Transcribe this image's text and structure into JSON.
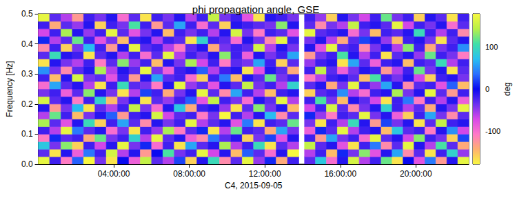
{
  "chart_data": {
    "type": "heatmap",
    "title": "phi propagation angle, GSE",
    "x_label": "C4, 2015-09-05",
    "y_label": "Frequency [Hz]",
    "xlim": [
      0,
      22.8
    ],
    "xticks": [
      {
        "value": 4,
        "label": "04:00:00"
      },
      {
        "value": 8,
        "label": "08:00:00"
      },
      {
        "value": 12,
        "label": "12:00:00"
      },
      {
        "value": 16,
        "label": "16:00:00"
      },
      {
        "value": 20,
        "label": "20:00:00"
      }
    ],
    "ylim": [
      0,
      0.5
    ],
    "yticks": [
      {
        "value": 0,
        "label": "0.0"
      },
      0.1,
      0.2,
      0.3,
      0.4,
      0.5
    ],
    "x_edges": [
      0,
      0.6,
      1.2,
      1.8,
      2.4,
      3,
      3.6,
      4.2,
      4.8,
      5.4,
      6,
      6.6,
      7.2,
      7.8,
      8.4,
      9,
      9.6,
      10.2,
      10.8,
      11.4,
      12,
      12.6,
      13.2,
      13.8,
      14.1,
      14.68,
      15.26,
      15.84,
      16.42,
      17,
      17.58,
      18.16,
      18.74,
      19.32,
      19.9,
      20.48,
      21.06,
      21.64,
      22.22,
      22.8
    ],
    "y_edges": [
      0,
      0.025,
      0.05,
      0.075,
      0.1,
      0.125,
      0.15,
      0.175,
      0.2,
      0.225,
      0.25,
      0.275,
      0.3,
      0.325,
      0.35,
      0.375,
      0.4,
      0.425,
      0.45,
      0.475,
      0.5
    ],
    "cells": [
      [
        170,
        -20,
        -110,
        30,
        180,
        -40,
        -170,
        0,
        -90,
        150,
        -30,
        -60,
        20,
        -160,
        -10,
        100,
        -120,
        -30,
        170,
        -50,
        10,
        -140,
        -20,
        null,
        -30,
        80,
        -100,
        -10,
        160,
        -60,
        -20,
        120,
        -170,
        0,
        -80,
        40,
        -130,
        -10,
        170
      ],
      [
        -30,
        -170,
        -10,
        -90,
        40,
        -20,
        160,
        -60,
        -10,
        -130,
        0,
        110,
        -40,
        -20,
        170,
        -70,
        -10,
        -150,
        30,
        -30,
        -100,
        -10,
        180,
        null,
        -60,
        -20,
        -150,
        10,
        -40,
        130,
        -80,
        -10,
        60,
        -120,
        -30,
        -170,
        -20,
        90,
        -50
      ],
      [
        80,
        -40,
        130,
        -160,
        -20,
        -70,
        -10,
        170,
        -40,
        10,
        -100,
        -20,
        -170,
        60,
        -30,
        -10,
        140,
        -60,
        -20,
        100,
        -170,
        -30,
        -60,
        null,
        150,
        -30,
        -10,
        -80,
        -170,
        -20,
        40,
        -120,
        -30,
        170,
        -10,
        -60,
        110,
        -30,
        -140
      ],
      [
        -110,
        10,
        -30,
        -20,
        -140,
        120,
        -40,
        -20,
        90,
        -60,
        170,
        -30,
        -10,
        -90,
        -120,
        40,
        -30,
        -10,
        -160,
        -40,
        20,
        -80,
        -10,
        null,
        -20,
        -130,
        60,
        -40,
        -20,
        -100,
        170,
        -30,
        -10,
        -70,
        130,
        -20,
        -40,
        -160,
        20
      ],
      [
        -20,
        -60,
        170,
        40,
        -30,
        -10,
        -100,
        -40,
        -170,
        -20,
        -50,
        140,
        -110,
        -30,
        10,
        -170,
        -60,
        120,
        -20,
        -30,
        -140,
        60,
        -40,
        null,
        -90,
        10,
        -30,
        170,
        -60,
        -20,
        -10,
        -150,
        80,
        -30,
        -20,
        -110,
        -10,
        50,
        -70
      ],
      [
        140,
        -30,
        -80,
        -10,
        100,
        -160,
        -20,
        60,
        -30,
        -120,
        -10,
        -40,
        -20,
        170,
        -60,
        -30,
        -10,
        -80,
        40,
        -170,
        -20,
        -30,
        120,
        null,
        -40,
        -170,
        -20,
        -60,
        100,
        -10,
        -130,
        20,
        -40,
        -10,
        -170,
        -30,
        150,
        -20,
        -10
      ],
      [
        -60,
        120,
        -20,
        -150,
        -40,
        -10,
        30,
        -130,
        -20,
        -10,
        160,
        -70,
        -30,
        -20,
        -110,
        -40,
        180,
        -20,
        -60,
        -10,
        70,
        -120,
        -30,
        null,
        10,
        -50,
        -110,
        -20,
        -30,
        170,
        -40,
        -10,
        -90,
        -160,
        -20,
        60,
        -40,
        -120,
        -30
      ],
      [
        -10,
        -130,
        -40,
        70,
        -170,
        -30,
        -60,
        -20,
        150,
        -40,
        -100,
        -10,
        80,
        -140,
        -20,
        -10,
        -50,
        -170,
        -30,
        130,
        -40,
        -10,
        -150,
        null,
        -70,
        -20,
        160,
        -30,
        -120,
        -40,
        -10,
        90,
        -20,
        -60,
        -30,
        -140,
        -10,
        -40,
        170
      ],
      [
        160,
        -30,
        -10,
        -110,
        -20,
        90,
        -150,
        -40,
        -10,
        -170,
        -30,
        -50,
        -20,
        30,
        -80,
        150,
        -20,
        -40,
        -100,
        -10,
        -30,
        170,
        -60,
        null,
        -20,
        110,
        -40,
        -150,
        -10,
        -30,
        -70,
        -170,
        -20,
        40,
        -110,
        -20,
        -60,
        -10,
        -90
      ],
      [
        -40,
        -20,
        -90,
        -30,
        130,
        -10,
        -40,
        -170,
        -60,
        20,
        -20,
        -140,
        -40,
        -10,
        170,
        -30,
        -120,
        60,
        -20,
        -60,
        -150,
        -20,
        -10,
        null,
        -160,
        -30,
        -20,
        50,
        -60,
        -100,
        -20,
        -10,
        140,
        -40,
        -10,
        170,
        -30,
        -130,
        -20
      ],
      [
        -100,
        60,
        -30,
        -10,
        -60,
        -170,
        -20,
        100,
        -30,
        -40,
        -110,
        -10,
        170,
        -50,
        -30,
        -80,
        -10,
        -30,
        150,
        -40,
        -20,
        -60,
        90,
        null,
        -30,
        -10,
        -140,
        -40,
        170,
        -20,
        -50,
        60,
        -10,
        -120,
        -30,
        -20,
        -80,
        30,
        -150
      ],
      [
        -20,
        -150,
        -10,
        160,
        -40,
        -30,
        -80,
        -20,
        -130,
        -10,
        60,
        -30,
        -20,
        -100,
        -160,
        -20,
        40,
        -150,
        -10,
        -30,
        120,
        -40,
        -20,
        null,
        -110,
        -60,
        -20,
        -10,
        -30,
        -150,
        110,
        -20,
        -40,
        -10,
        -70,
        -160,
        -20,
        -10,
        -40
      ],
      [
        50,
        -40,
        -120,
        -30,
        -10,
        140,
        -60,
        -10,
        -30,
        170,
        -40,
        -90,
        -20,
        -10,
        30,
        -60,
        -20,
        -10,
        -170,
        -80,
        -10,
        -30,
        -140,
        null,
        -20,
        150,
        -30,
        -90,
        -40,
        -10,
        -20,
        -130,
        -60,
        -20,
        120,
        -40,
        -10,
        -170,
        -30
      ],
      [
        -170,
        -10,
        -40,
        -60,
        -20,
        -110,
        -30,
        130,
        -50,
        -20,
        -150,
        -10,
        -40,
        140,
        -70,
        -20,
        -110,
        -30,
        -40,
        60,
        -20,
        -160,
        -30,
        null,
        -50,
        -20,
        -10,
        -170,
        60,
        -30,
        -90,
        -20,
        -10,
        -150,
        -20,
        -30,
        100,
        -60,
        -20
      ],
      [
        -30,
        100,
        -10,
        -20,
        -170,
        -30,
        -10,
        -60,
        -20,
        -100,
        -30,
        170,
        -60,
        -20,
        -40,
        -10,
        130,
        -20,
        -90,
        -10,
        -40,
        -20,
        60,
        null,
        -130,
        -40,
        -20,
        110,
        -10,
        -60,
        -20,
        -170,
        -30,
        -10,
        -50,
        120,
        -20,
        -40,
        -110
      ],
      [
        -120,
        -20,
        -160,
        -40,
        70,
        -20,
        -130,
        -10,
        170,
        -30,
        -20,
        -60,
        -110,
        -30,
        -10,
        -140,
        -40,
        -20,
        -30,
        160,
        -60,
        -10,
        -40,
        null,
        -10,
        -80,
        170,
        -30,
        -20,
        -120,
        -40,
        -10,
        -60,
        130,
        -20,
        -140,
        -40,
        -20,
        50
      ],
      [
        10,
        -60,
        -30,
        120,
        -20,
        -80,
        -40,
        -150,
        -20,
        -10,
        -60,
        -20,
        -30,
        -170,
        90,
        -20,
        -30,
        -100,
        -10,
        -40,
        -120,
        170,
        -20,
        null,
        -40,
        -10,
        -60,
        -140,
        -30,
        20,
        -10,
        -50,
        -150,
        -20,
        -10,
        -40,
        -170,
        -30,
        -10
      ],
      [
        -70,
        -20,
        140,
        -10,
        -50,
        -20,
        170,
        -30,
        -80,
        -40,
        -10,
        -150,
        -20,
        -40,
        -20,
        -60,
        -10,
        160,
        -40,
        -110,
        -20,
        -30,
        -80,
        null,
        170,
        -30,
        -20,
        -10,
        -100,
        -40,
        -150,
        -20,
        -30,
        -10,
        100,
        -20,
        -60,
        -20,
        -120
      ],
      [
        -20,
        -140,
        -30,
        -50,
        -10,
        -160,
        -20,
        -40,
        110,
        -20,
        -130,
        -30,
        60,
        -20,
        -100,
        -30,
        -160,
        -10,
        -20,
        -30,
        -40,
        130,
        -10,
        null,
        -30,
        -120,
        -40,
        -60,
        150,
        -20,
        -10,
        -30,
        170,
        -70,
        -20,
        -40,
        -10,
        -100,
        -30
      ],
      [
        170,
        -30,
        -60,
        -130,
        -20,
        -40,
        -10,
        -100,
        -30,
        -170,
        -20,
        -40,
        -10,
        -60,
        -20,
        150,
        -40,
        -20,
        -80,
        -170,
        -10,
        -20,
        -40,
        null,
        -20,
        -50,
        -160,
        -10,
        -40,
        -70,
        -20,
        120,
        -40,
        -20,
        -160,
        -10,
        -30,
        -170,
        -20
      ]
    ],
    "colorbar": {
      "range": [
        -180,
        180
      ],
      "ticks": [
        -100,
        0,
        100
      ],
      "label": "deg"
    }
  }
}
